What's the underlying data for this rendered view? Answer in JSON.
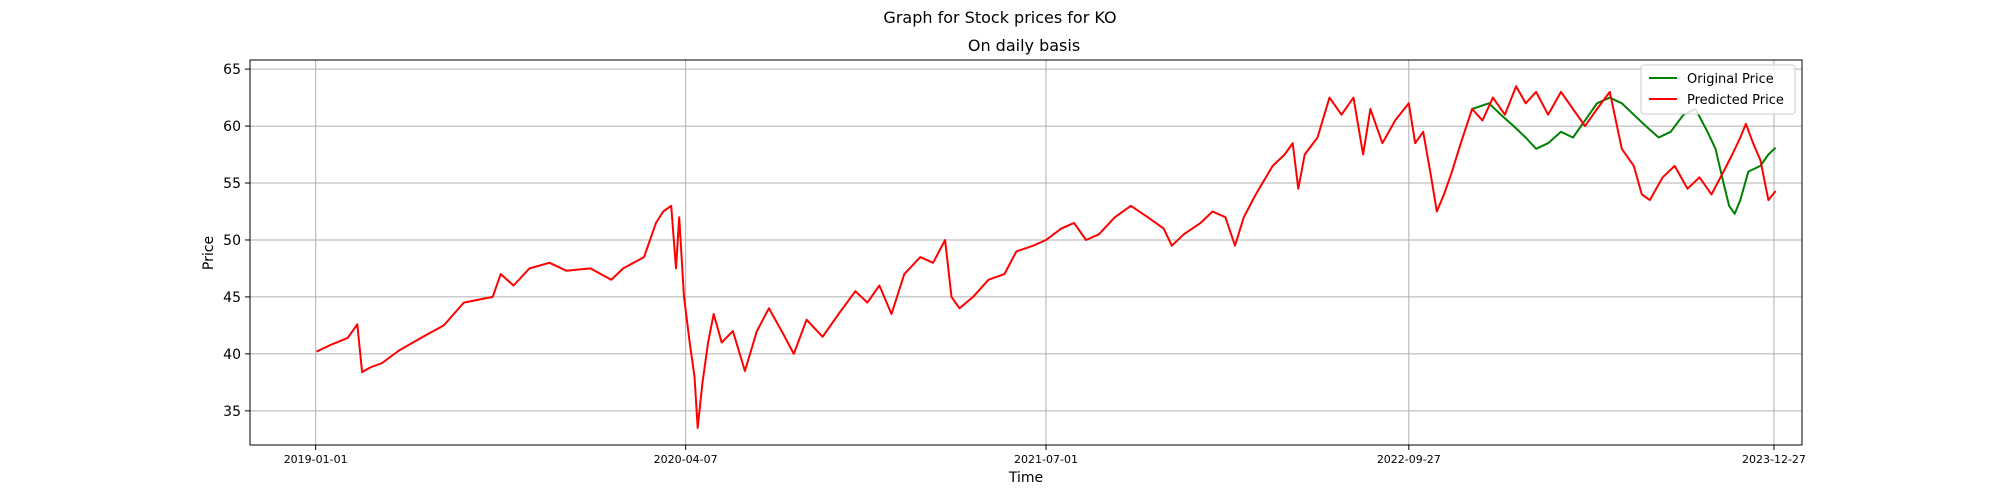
{
  "chart_data": {
    "type": "line",
    "title": "Graph for Stock prices for KO",
    "subtitle": "On daily basis",
    "xlabel": "Time",
    "ylabel": "Price",
    "xlim": [
      "2018-10-11",
      "2024-01-31"
    ],
    "ylim": [
      32,
      65.8
    ],
    "x_ticks": [
      "2019-01-01",
      "2020-04-07",
      "2021-07-01",
      "2022-09-27",
      "2023-12-27"
    ],
    "y_ticks": [
      35,
      40,
      45,
      50,
      55,
      60,
      65
    ],
    "grid": true,
    "legend_position": "top-right",
    "series": [
      {
        "name": "Original Price",
        "color": "#008000",
        "points": [
          [
            "2022-12-15",
            61.5
          ],
          [
            "2023-01-05",
            62.0
          ],
          [
            "2023-01-20",
            61.0
          ],
          [
            "2023-02-05",
            60.0
          ],
          [
            "2023-02-20",
            59.0
          ],
          [
            "2023-03-05",
            58.0
          ],
          [
            "2023-03-20",
            58.5
          ],
          [
            "2023-04-05",
            59.5
          ],
          [
            "2023-04-20",
            59.0
          ],
          [
            "2023-05-05",
            60.5
          ],
          [
            "2023-05-20",
            62.0
          ],
          [
            "2023-06-05",
            62.5
          ],
          [
            "2023-06-20",
            62.0
          ],
          [
            "2023-07-05",
            61.0
          ],
          [
            "2023-07-20",
            60.0
          ],
          [
            "2023-08-05",
            59.0
          ],
          [
            "2023-08-20",
            59.5
          ],
          [
            "2023-09-05",
            61.0
          ],
          [
            "2023-09-20",
            61.5
          ],
          [
            "2023-10-05",
            59.5
          ],
          [
            "2023-10-15",
            58.0
          ],
          [
            "2023-10-25",
            55.0
          ],
          [
            "2023-11-01",
            53.0
          ],
          [
            "2023-11-08",
            52.3
          ],
          [
            "2023-11-15",
            53.5
          ],
          [
            "2023-11-25",
            56.0
          ],
          [
            "2023-12-10",
            56.5
          ],
          [
            "2023-12-20",
            57.5
          ],
          [
            "2023-12-29",
            58.1
          ]
        ]
      },
      {
        "name": "Predicted Price",
        "color": "#ff0000",
        "points": [
          [
            "2019-01-02",
            40.2
          ],
          [
            "2019-01-20",
            40.8
          ],
          [
            "2019-02-10",
            41.4
          ],
          [
            "2019-02-22",
            42.6
          ],
          [
            "2019-02-28",
            38.4
          ],
          [
            "2019-03-10",
            38.8
          ],
          [
            "2019-03-25",
            39.2
          ],
          [
            "2019-04-15",
            40.3
          ],
          [
            "2019-05-15",
            41.5
          ],
          [
            "2019-06-10",
            42.5
          ],
          [
            "2019-07-05",
            44.5
          ],
          [
            "2019-08-10",
            45.0
          ],
          [
            "2019-08-20",
            47.0
          ],
          [
            "2019-09-05",
            46.0
          ],
          [
            "2019-09-25",
            47.5
          ],
          [
            "2019-10-20",
            48.0
          ],
          [
            "2019-11-10",
            47.3
          ],
          [
            "2019-12-10",
            47.5
          ],
          [
            "2020-01-05",
            46.5
          ],
          [
            "2020-01-20",
            47.5
          ],
          [
            "2020-02-15",
            48.5
          ],
          [
            "2020-03-01",
            51.5
          ],
          [
            "2020-03-10",
            52.5
          ],
          [
            "2020-03-20",
            53.0
          ],
          [
            "2020-03-26",
            47.5
          ],
          [
            "2020-03-30",
            52.0
          ],
          [
            "2020-04-05",
            45.0
          ],
          [
            "2020-04-12",
            41.0
          ],
          [
            "2020-04-18",
            38.0
          ],
          [
            "2020-04-22",
            33.5
          ],
          [
            "2020-04-28",
            37.5
          ],
          [
            "2020-05-05",
            41.0
          ],
          [
            "2020-05-12",
            43.5
          ],
          [
            "2020-05-22",
            41.0
          ],
          [
            "2020-06-05",
            42.0
          ],
          [
            "2020-06-20",
            38.5
          ],
          [
            "2020-07-05",
            42.0
          ],
          [
            "2020-07-20",
            44.0
          ],
          [
            "2020-08-05",
            42.0
          ],
          [
            "2020-08-20",
            40.0
          ],
          [
            "2020-09-05",
            43.0
          ],
          [
            "2020-09-25",
            41.5
          ],
          [
            "2020-10-15",
            43.5
          ],
          [
            "2020-11-05",
            45.5
          ],
          [
            "2020-11-20",
            44.5
          ],
          [
            "2020-12-05",
            46.0
          ],
          [
            "2020-12-20",
            43.5
          ],
          [
            "2021-01-05",
            47.0
          ],
          [
            "2021-01-25",
            48.5
          ],
          [
            "2021-02-10",
            48.0
          ],
          [
            "2021-02-25",
            50.0
          ],
          [
            "2021-03-05",
            45.0
          ],
          [
            "2021-03-15",
            44.0
          ],
          [
            "2021-04-01",
            45.0
          ],
          [
            "2021-04-20",
            46.5
          ],
          [
            "2021-05-10",
            47.0
          ],
          [
            "2021-05-25",
            49.0
          ],
          [
            "2021-06-15",
            49.5
          ],
          [
            "2021-07-01",
            50.0
          ],
          [
            "2021-07-20",
            51.0
          ],
          [
            "2021-08-05",
            51.5
          ],
          [
            "2021-08-20",
            50.0
          ],
          [
            "2021-09-05",
            50.5
          ],
          [
            "2021-09-25",
            52.0
          ],
          [
            "2021-10-15",
            53.0
          ],
          [
            "2021-11-05",
            52.0
          ],
          [
            "2021-11-25",
            51.0
          ],
          [
            "2021-12-05",
            49.5
          ],
          [
            "2021-12-20",
            50.5
          ],
          [
            "2022-01-10",
            51.5
          ],
          [
            "2022-01-25",
            52.5
          ],
          [
            "2022-02-10",
            52.0
          ],
          [
            "2022-02-22",
            49.5
          ],
          [
            "2022-03-05",
            52.0
          ],
          [
            "2022-03-20",
            54.0
          ],
          [
            "2022-04-10",
            56.5
          ],
          [
            "2022-04-25",
            57.5
          ],
          [
            "2022-05-05",
            58.5
          ],
          [
            "2022-05-12",
            54.5
          ],
          [
            "2022-05-20",
            57.5
          ],
          [
            "2022-06-05",
            59.0
          ],
          [
            "2022-06-20",
            62.5
          ],
          [
            "2022-07-05",
            61.0
          ],
          [
            "2022-07-20",
            62.5
          ],
          [
            "2022-08-01",
            57.5
          ],
          [
            "2022-08-10",
            61.5
          ],
          [
            "2022-08-25",
            58.5
          ],
          [
            "2022-09-10",
            60.5
          ],
          [
            "2022-09-27",
            62.0
          ],
          [
            "2022-10-05",
            58.5
          ],
          [
            "2022-10-15",
            59.5
          ],
          [
            "2022-10-25",
            55.5
          ],
          [
            "2022-11-01",
            52.5
          ],
          [
            "2022-11-10",
            54.0
          ],
          [
            "2022-11-20",
            56.0
          ],
          [
            "2022-12-01",
            58.5
          ],
          [
            "2022-12-15",
            61.5
          ],
          [
            "2022-12-28",
            60.5
          ],
          [
            "2023-01-10",
            62.5
          ],
          [
            "2023-01-25",
            61.0
          ],
          [
            "2023-02-08",
            63.5
          ],
          [
            "2023-02-20",
            62.0
          ],
          [
            "2023-03-05",
            63.0
          ],
          [
            "2023-03-20",
            61.0
          ],
          [
            "2023-04-05",
            63.0
          ],
          [
            "2023-04-20",
            61.5
          ],
          [
            "2023-05-05",
            60.0
          ],
          [
            "2023-05-20",
            61.5
          ],
          [
            "2023-06-05",
            63.0
          ],
          [
            "2023-06-20",
            58.0
          ],
          [
            "2023-07-05",
            56.5
          ],
          [
            "2023-07-15",
            54.0
          ],
          [
            "2023-07-25",
            53.5
          ],
          [
            "2023-08-10",
            55.5
          ],
          [
            "2023-08-25",
            56.5
          ],
          [
            "2023-09-10",
            54.5
          ],
          [
            "2023-09-25",
            55.5
          ],
          [
            "2023-10-10",
            54.0
          ],
          [
            "2023-10-25",
            56.0
          ],
          [
            "2023-11-05",
            57.5
          ],
          [
            "2023-11-15",
            59.0
          ],
          [
            "2023-11-22",
            60.2
          ],
          [
            "2023-12-01",
            58.5
          ],
          [
            "2023-12-10",
            57.0
          ],
          [
            "2023-12-20",
            53.5
          ],
          [
            "2023-12-29",
            54.3
          ]
        ]
      }
    ]
  }
}
